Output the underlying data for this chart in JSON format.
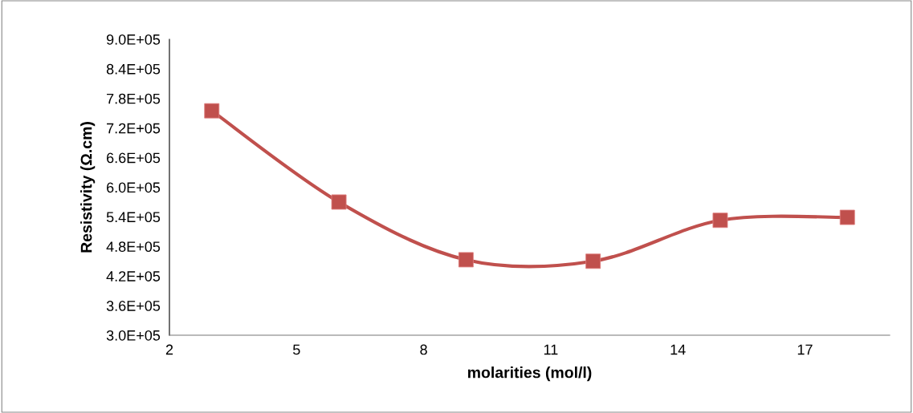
{
  "chart_data": {
    "type": "line",
    "xlabel": "molarities (mol/l)",
    "ylabel": "Resistivity (Ω.cm)",
    "x": [
      3,
      6,
      9,
      12,
      15,
      18
    ],
    "series": [
      {
        "color": "#c0504d",
        "values": [
          755000,
          570000,
          453000,
          450000,
          533000,
          539000
        ]
      }
    ],
    "marker": "square",
    "xlim": [
      2,
      19
    ],
    "xticks": [
      2,
      5,
      8,
      11,
      14,
      17
    ],
    "ylim": [
      300000,
      900000
    ],
    "yticks": [
      {
        "value": 300000,
        "label": "3.0E+05"
      },
      {
        "value": 360000,
        "label": "3.6E+05"
      },
      {
        "value": 420000,
        "label": "4.2E+05"
      },
      {
        "value": 480000,
        "label": "4.8E+05"
      },
      {
        "value": 540000,
        "label": "5.4E+05"
      },
      {
        "value": 600000,
        "label": "6.0E+05"
      },
      {
        "value": 660000,
        "label": "6.6E+05"
      },
      {
        "value": 720000,
        "label": "7.2E+05"
      },
      {
        "value": 780000,
        "label": "7.8E+05"
      },
      {
        "value": 840000,
        "label": "8.4E+05"
      },
      {
        "value": 900000,
        "label": "9.0E+05"
      }
    ],
    "grid": false,
    "legend": false
  }
}
